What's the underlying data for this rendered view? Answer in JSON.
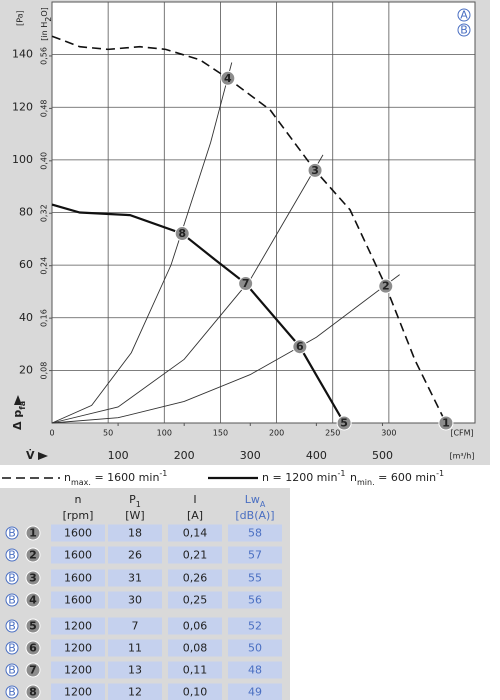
{
  "chart_data": {
    "type": "fan-curve",
    "y_label": "[Pa]",
    "y2_label": {
      "text": "[in H",
      "sub": "2",
      "end": "O]"
    },
    "x_label": "[m³/h]",
    "x2_label": "[CFM]",
    "y_symbol": {
      "text": "Δ p",
      "sub": "fa"
    },
    "x_symbol": "V̇",
    "xlim": [
      0,
      640
    ],
    "xticks": [
      100,
      200,
      300,
      400,
      500
    ],
    "x2lim": [
      0,
      376.7
    ],
    "x2ticks": [
      0,
      50,
      100,
      150,
      200,
      250,
      300
    ],
    "ylim": [
      0,
      160
    ],
    "yticks": [
      20,
      40,
      60,
      80,
      100,
      120,
      140
    ],
    "y2lim": [
      0,
      0.6423
    ],
    "y2ticks": [
      {
        "value": 0.08,
        "label": "0,08"
      },
      {
        "value": 0.16,
        "label": "0,16"
      },
      {
        "value": 0.24,
        "label": "0,24"
      },
      {
        "value": 0.32,
        "label": "0,32"
      },
      {
        "value": 0.4,
        "label": "0,40"
      },
      {
        "value": 0.48,
        "label": "0,48"
      },
      {
        "value": 0.56,
        "label": "0,56"
      }
    ],
    "grid": true,
    "series": [
      {
        "style": "dashed",
        "x": [
          0,
          42,
          85,
          133,
          172,
          224,
          266,
          330,
          398,
          451,
          505,
          549,
          596
        ],
        "values": [
          147,
          143,
          142,
          143,
          142,
          138,
          131,
          119,
          96,
          81,
          52,
          24,
          0
        ]
      },
      {
        "style": "solid-bold",
        "x": [
          0,
          42,
          118,
          197,
          247,
          293,
          375,
          405,
          442
        ],
        "values": [
          83,
          80,
          79,
          72,
          62,
          53,
          29,
          16,
          0
        ]
      },
      {
        "style": "thin",
        "x": [
          0,
          60,
          120,
          180,
          240,
          272
        ],
        "values": [
          0,
          6.7,
          26.7,
          60,
          106.6,
          137
        ]
      },
      {
        "style": "thin",
        "x": [
          0,
          100,
          200,
          300,
          410
        ],
        "values": [
          0,
          6.1,
          24.2,
          54.5,
          101.9
        ]
      },
      {
        "style": "thin",
        "x": [
          0,
          100,
          200,
          300,
          400,
          526
        ],
        "values": [
          0,
          2.0,
          8.2,
          18.4,
          32.6,
          56.4
        ]
      }
    ],
    "points": {
      "labels": [
        "1",
        "2",
        "3",
        "4",
        "5",
        "6",
        "7",
        "8"
      ],
      "x": [
        596,
        505,
        398,
        266,
        442,
        375,
        293,
        197
      ],
      "values": [
        0,
        52,
        96,
        131,
        0,
        29,
        53,
        72
      ]
    },
    "corner_labels": [
      "A",
      "B"
    ],
    "legend": [
      {
        "style": "dashed",
        "text": "n",
        "sub": "max.",
        "main": " = 1600 min",
        "sup": "-1"
      },
      {
        "style": "solid-bold",
        "text": "n",
        "main": " = 1200 min",
        "sup": "-1"
      },
      {
        "style": "none",
        "text": "n",
        "sub": "min.",
        "main": " = 600 min",
        "sup": "-1"
      }
    ]
  },
  "table": {
    "columns": [
      {
        "name": "n",
        "unit": "[rpm]"
      },
      {
        "name": "P",
        "sub": "1",
        "unit": "[W]"
      },
      {
        "name": "I",
        "unit": "[A]"
      },
      {
        "name": "Lw",
        "sub": "A",
        "unit": "[dB(A)]"
      }
    ],
    "rows": [
      {
        "variant": "B",
        "point": "1",
        "cells": [
          "1600",
          "18",
          "0,14",
          "58"
        ]
      },
      {
        "variant": "B",
        "point": "2",
        "cells": [
          "1600",
          "26",
          "0,21",
          "57"
        ]
      },
      {
        "variant": "B",
        "point": "3",
        "cells": [
          "1600",
          "31",
          "0,26",
          "55"
        ]
      },
      {
        "variant": "B",
        "point": "4",
        "cells": [
          "1600",
          "30",
          "0,25",
          "56"
        ]
      },
      {
        "variant": "B",
        "point": "5",
        "cells": [
          "1200",
          "7",
          "0,06",
          "52"
        ]
      },
      {
        "variant": "B",
        "point": "6",
        "cells": [
          "1200",
          "11",
          "0,08",
          "50"
        ]
      },
      {
        "variant": "B",
        "point": "7",
        "cells": [
          "1200",
          "13",
          "0,11",
          "48"
        ]
      },
      {
        "variant": "B",
        "point": "8",
        "cells": [
          "1200",
          "12",
          "0,10",
          "49"
        ]
      }
    ]
  }
}
